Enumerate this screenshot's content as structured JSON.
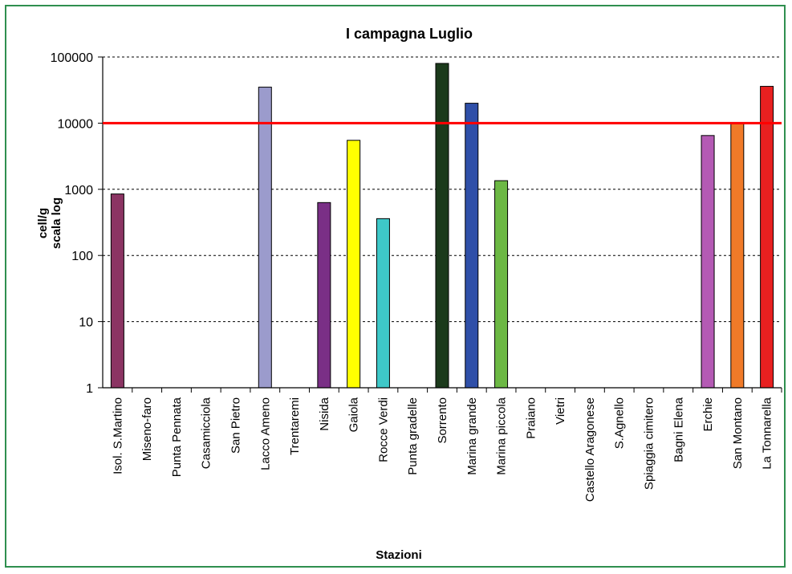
{
  "chart_data": {
    "type": "bar",
    "title": "I campagna Luglio",
    "xlabel": "Stazioni",
    "ylabel_lines": [
      "cell/g",
      "scala log"
    ],
    "yscale": "log",
    "ylim": [
      1,
      100000
    ],
    "yticks": [
      "1",
      "10",
      "100",
      "1000",
      "10000",
      "100000"
    ],
    "grid": "horizontal dashed",
    "categories": [
      "Isol. S.Martino",
      "Miseno-faro",
      "Punta Pennata",
      "Casamicciola",
      "San Pietro",
      "Lacco Ameno",
      "Trentaremi",
      "Nisida",
      "Gaiola",
      "Rocce Verdi",
      "Punta gradelle",
      "Sorrento",
      "Marina grande",
      "Marina piccola",
      "Praiano",
      "Vietri",
      "Castello Aragonese",
      "S.Agnello",
      "Spiaggia cimitero",
      "Bagni Elena",
      "Erchie",
      "San Montano",
      "La Tonnarella"
    ],
    "values": [
      850,
      null,
      null,
      null,
      null,
      35000,
      null,
      630,
      5500,
      360,
      null,
      80000,
      20000,
      1350,
      null,
      null,
      null,
      null,
      null,
      null,
      6500,
      10000,
      36000
    ],
    "bar_colors": [
      "#8b3463",
      null,
      null,
      null,
      null,
      "#9b9bcc",
      null,
      "#7a2f86",
      "#ffff00",
      "#3ec8c8",
      null,
      "#1b3a1b",
      "#2f4fa8",
      "#6cb844",
      null,
      null,
      null,
      null,
      null,
      null,
      "#b45ab4",
      "#f07a28",
      "#e82020"
    ],
    "threshold": {
      "value": 10000,
      "color": "#ff0000"
    }
  }
}
